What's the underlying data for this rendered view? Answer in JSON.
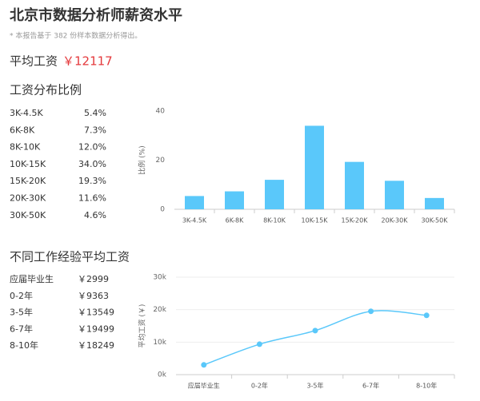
{
  "header": {
    "title": "北京市数据分析师薪资水平",
    "note": "* 本报告基于 382 份样本数据分析得出。"
  },
  "summary": {
    "label": "平均工资",
    "value": "￥12117"
  },
  "distribution": {
    "title": "工资分布比例",
    "rows": [
      [
        "3K-4.5K",
        "5.4%"
      ],
      [
        "6K-8K",
        "7.3%"
      ],
      [
        "8K-10K",
        "12.0%"
      ],
      [
        "10K-15K",
        "34.0%"
      ],
      [
        "15K-20K",
        "19.3%"
      ],
      [
        "20K-30K",
        "11.6%"
      ],
      [
        "30K-50K",
        "4.6%"
      ]
    ]
  },
  "experience": {
    "title": "不同工作经验平均工资",
    "rows": [
      [
        "应届毕业生",
        "￥2999"
      ],
      [
        "0-2年",
        "￥9363"
      ],
      [
        "3-5年",
        "￥13549"
      ],
      [
        "6-7年",
        "￥19499"
      ],
      [
        "8-10年",
        "￥18249"
      ]
    ]
  },
  "chart_data": [
    {
      "type": "bar",
      "ylabel": "比例 (%)",
      "categories": [
        "3K-4.5K",
        "6K-8K",
        "8K-10K",
        "10K-15K",
        "15K-20K",
        "20K-30K",
        "30K-50K"
      ],
      "values": [
        5.4,
        7.3,
        12.0,
        34.0,
        19.3,
        11.6,
        4.6
      ],
      "color": "#5ac8fa",
      "ylim": [
        0,
        40
      ],
      "yticks": [
        0,
        20,
        40
      ],
      "grid": false
    },
    {
      "type": "line",
      "ylabel": "平均工资 (￥)",
      "categories": [
        "应届毕业生",
        "0-2年",
        "3-5年",
        "6-7年",
        "8-10年"
      ],
      "values": [
        2999,
        9363,
        13549,
        19499,
        18249
      ],
      "color": "#5ac8fa",
      "ylim": [
        0,
        30000
      ],
      "yticks": [
        {
          "value": 0,
          "label": "0k"
        },
        {
          "value": 10000,
          "label": "10k"
        },
        {
          "value": 20000,
          "label": "20k"
        },
        {
          "value": 30000,
          "label": "30k"
        }
      ],
      "grid": true
    }
  ]
}
